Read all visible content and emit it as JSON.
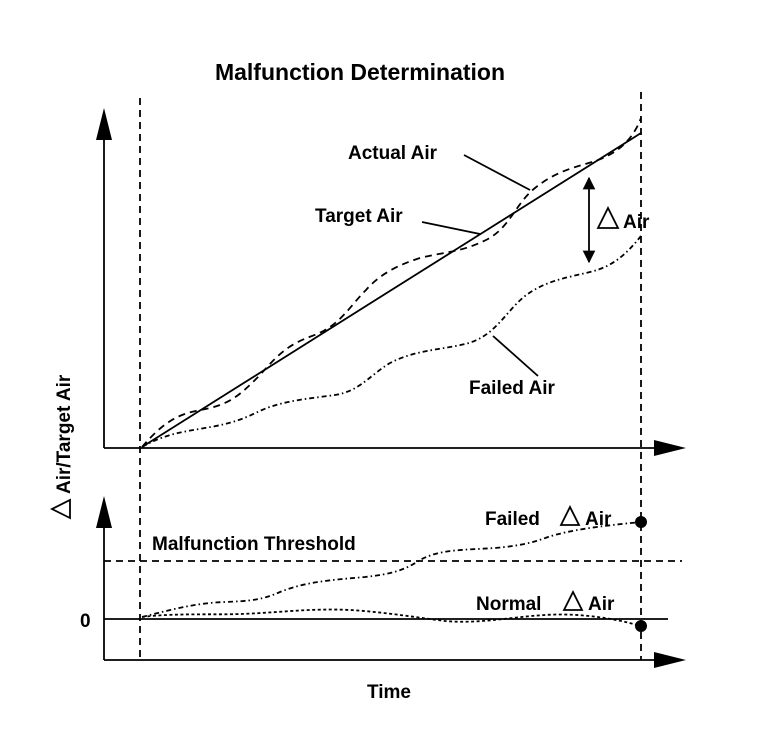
{
  "title": "Malfunction Determination",
  "labels": {
    "actual_air": "Actual Air",
    "target_air": "Target Air",
    "delta_air": "Air",
    "failed_air": "Failed Air",
    "y_axis": "Air/Target Air",
    "failed_delta_prefix": "Failed",
    "failed_delta_suffix": "Air",
    "malfunction_threshold": "Malfunction Threshold",
    "normal_delta_prefix": "Normal",
    "normal_delta_suffix": "Air",
    "zero": "0",
    "x_axis": "Time"
  }
}
